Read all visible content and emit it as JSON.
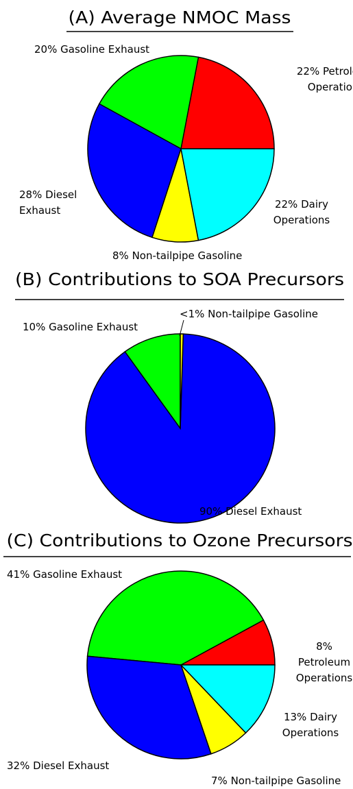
{
  "chart_data": [
    {
      "type": "pie",
      "title": "(A) Average NMOC Mass",
      "categories": [
        "Petroleum Operations",
        "Gasoline Exhaust",
        "Diesel Exhaust",
        "Non-tailpipe Gasoline",
        "Dairy Operations"
      ],
      "values": [
        22,
        20,
        28,
        8,
        22
      ],
      "value_labels": [
        "22%",
        "20%",
        "28%",
        "8%",
        "22%"
      ],
      "colors": [
        "#ff0000",
        "#00ff00",
        "#0000ff",
        "#ffff00",
        "#00ffff"
      ]
    },
    {
      "type": "pie",
      "title": "(B) Contributions to SOA Precursors",
      "categories": [
        "Gasoline Exhaust",
        "Diesel Exhaust",
        "Non-tailpipe Gasoline"
      ],
      "values": [
        10,
        90,
        0.5
      ],
      "value_labels": [
        "10%",
        "90%",
        "<1%"
      ],
      "colors": [
        "#00ff00",
        "#0000ff",
        "#ffff00"
      ]
    },
    {
      "type": "pie",
      "title": "(C) Contributions to Ozone Precursors",
      "categories": [
        "Petroleum Operations",
        "Gasoline Exhaust",
        "Diesel Exhaust",
        "Non-tailpipe Gasoline",
        "Dairy Operations"
      ],
      "values": [
        8,
        41,
        32,
        7,
        13
      ],
      "value_labels": [
        "8%",
        "41%",
        "32%",
        "7%",
        "13%"
      ],
      "colors": [
        "#ff0000",
        "#00ff00",
        "#0000ff",
        "#ffff00",
        "#00ffff"
      ]
    }
  ]
}
